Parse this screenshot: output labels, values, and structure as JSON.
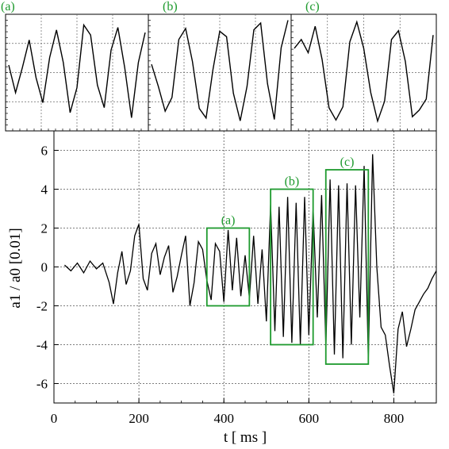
{
  "chart_data": [
    {
      "type": "line",
      "panel": "main",
      "xlabel": "t [ ms ]",
      "ylabel": "a1 / a0 [0.01]",
      "xlim": [
        0,
        900
      ],
      "ylim": [
        -7,
        7
      ],
      "xticks": [
        0,
        200,
        400,
        600,
        800
      ],
      "yticks": [
        -6,
        -4,
        -2,
        0,
        2,
        4,
        6
      ],
      "xtick_labels": [
        "0",
        "200",
        "400",
        "600",
        "800"
      ],
      "ytick_labels": [
        "-6",
        "-4",
        "-2",
        "0",
        "2",
        "4",
        "6"
      ],
      "grid": true,
      "line_color": "#000000",
      "x": [
        25,
        40,
        55,
        70,
        85,
        100,
        115,
        130,
        140,
        150,
        160,
        170,
        180,
        190,
        200,
        210,
        220,
        230,
        240,
        250,
        260,
        270,
        280,
        290,
        300,
        310,
        320,
        330,
        340,
        350,
        360,
        370,
        380,
        390,
        400,
        410,
        420,
        430,
        440,
        450,
        460,
        470,
        480,
        490,
        500,
        510,
        520,
        530,
        540,
        550,
        560,
        570,
        580,
        590,
        600,
        610,
        620,
        630,
        640,
        650,
        660,
        670,
        680,
        690,
        700,
        710,
        720,
        730,
        740,
        750,
        760,
        770,
        780,
        790,
        800,
        810,
        820,
        830,
        840,
        850,
        860,
        870,
        880,
        890,
        900
      ],
      "y": [
        0.1,
        -0.2,
        0.2,
        -0.3,
        0.3,
        -0.1,
        0.2,
        -0.8,
        -1.9,
        -0.3,
        0.8,
        -0.9,
        -0.2,
        1.6,
        2.2,
        -0.6,
        -1.2,
        0.7,
        1.2,
        -0.4,
        0.5,
        1.1,
        -1.3,
        -0.5,
        0.6,
        1.6,
        -2.0,
        -0.8,
        1.3,
        0.9,
        -0.7,
        -1.7,
        1.2,
        0.8,
        -1.8,
        1.9,
        -1.2,
        1.5,
        -1.5,
        0.6,
        -1.6,
        1.6,
        -1.9,
        0.9,
        -2.8,
        3.2,
        -3.3,
        3.1,
        -3.6,
        3.6,
        -3.9,
        3.3,
        -4.0,
        3.6,
        -3.5,
        3.0,
        -2.6,
        3.7,
        -4.1,
        4.5,
        -4.5,
        4.2,
        -4.7,
        4.3,
        -4.0,
        4.2,
        -2.6,
        5.2,
        -4.8,
        5.8,
        0.0,
        -3.1,
        -3.5,
        -5.1,
        -6.5,
        -3.2,
        -2.3,
        -4.1,
        -3.2,
        -2.2,
        -1.8,
        -1.4,
        -1.1,
        -0.6,
        -0.2
      ]
    },
    {
      "type": "line",
      "panel": "(a)",
      "x": [
        360,
        365,
        370,
        375,
        380,
        385,
        390,
        395,
        400,
        405,
        410,
        415,
        420,
        425,
        430,
        435,
        440,
        445,
        450,
        455,
        460
      ],
      "y": [
        0.3,
        -0.8,
        0.2,
        1.3,
        -0.2,
        -1.2,
        0.6,
        1.7,
        0.4,
        -1.6,
        -0.6,
        1.9,
        1.5,
        -0.5,
        -1.4,
        0.9,
        1.8,
        0.2,
        -1.8,
        0.4,
        1.6
      ],
      "ylim": [
        -2.2,
        2.2
      ]
    },
    {
      "type": "line",
      "panel": "(b)",
      "x": [
        510,
        515,
        520,
        525,
        530,
        535,
        540,
        545,
        550,
        555,
        560,
        565,
        570,
        575,
        580,
        585,
        590,
        595,
        600,
        605,
        610
      ],
      "y": [
        0.6,
        -1.0,
        -2.8,
        -1.8,
        2.4,
        3.2,
        0.8,
        -2.6,
        -3.3,
        0.2,
        3.0,
        2.6,
        -1.5,
        -3.5,
        -1.0,
        3.1,
        3.6,
        -0.8,
        -3.4,
        1.8,
        3.8
      ],
      "ylim": [
        -4.0,
        4.0
      ]
    },
    {
      "type": "line",
      "panel": "(c)",
      "x": [
        640,
        645,
        650,
        655,
        660,
        665,
        670,
        675,
        680,
        685,
        690,
        695,
        700,
        705,
        710,
        715,
        720,
        725,
        730,
        735,
        740
      ],
      "y": [
        2.2,
        3.0,
        1.8,
        4.2,
        1.2,
        -3.2,
        -4.3,
        -3.1,
        2.8,
        4.6,
        2.2,
        -1.8,
        -4.4,
        -2.6,
        3.0,
        3.8,
        1.0,
        -4.0,
        -3.4,
        -2.4,
        3.4
      ],
      "ylim": [
        -5.0,
        5.0
      ]
    }
  ],
  "annotations": {
    "box_a": {
      "label": "(a)",
      "x": [
        360,
        460
      ],
      "y": [
        -2.0,
        2.0
      ],
      "color": "#1e9a2e"
    },
    "box_b": {
      "label": "(b)",
      "x": [
        510,
        610
      ],
      "y": [
        -4.0,
        4.0
      ],
      "color": "#1e9a2e"
    },
    "box_c": {
      "label": "(c)",
      "x": [
        640,
        740
      ],
      "y": [
        -5.0,
        5.0
      ],
      "color": "#1e9a2e"
    }
  },
  "label_color": "#1e9a2e"
}
